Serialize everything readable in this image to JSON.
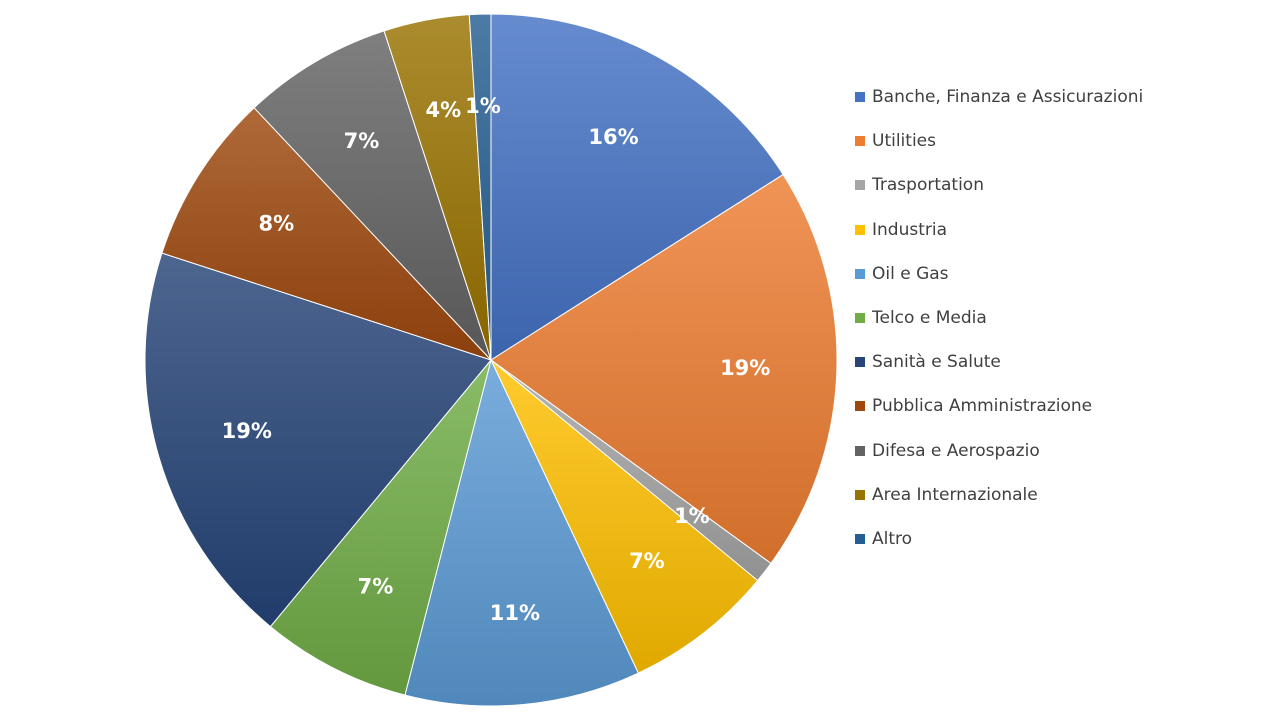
{
  "chart_data": {
    "type": "pie",
    "title": "",
    "legend_position": "right",
    "slices": [
      {
        "label": "Banche, Finanza e Assicurazioni",
        "value": 16,
        "display": "16%",
        "color": "#4472C4"
      },
      {
        "label": "Utilities",
        "value": 19,
        "display": "19%",
        "color": "#ED7D31"
      },
      {
        "label": "Trasportation",
        "value": 1,
        "display": "1%",
        "color": "#A5A5A5"
      },
      {
        "label": "Industria",
        "value": 7,
        "display": "7%",
        "color": "#FFC000"
      },
      {
        "label": "Oil e Gas",
        "value": 11,
        "display": "11%",
        "color": "#5B9BD5"
      },
      {
        "label": "Telco e Media",
        "value": 7,
        "display": "7%",
        "color": "#70AD47"
      },
      {
        "label": "Sanità e Salute",
        "value": 19,
        "display": "19%",
        "color": "#264478"
      },
      {
        "label": "Pubblica Amministrazione",
        "value": 8,
        "display": "8%",
        "color": "#9E480E"
      },
      {
        "label": "Difesa e Aerospazio",
        "value": 7,
        "display": "7%",
        "color": "#636363"
      },
      {
        "label": "Area Internazionale",
        "value": 4,
        "display": "4%",
        "color": "#997300"
      },
      {
        "label": "Altro",
        "value": 1,
        "display": "1%",
        "color": "#255E91"
      }
    ]
  }
}
